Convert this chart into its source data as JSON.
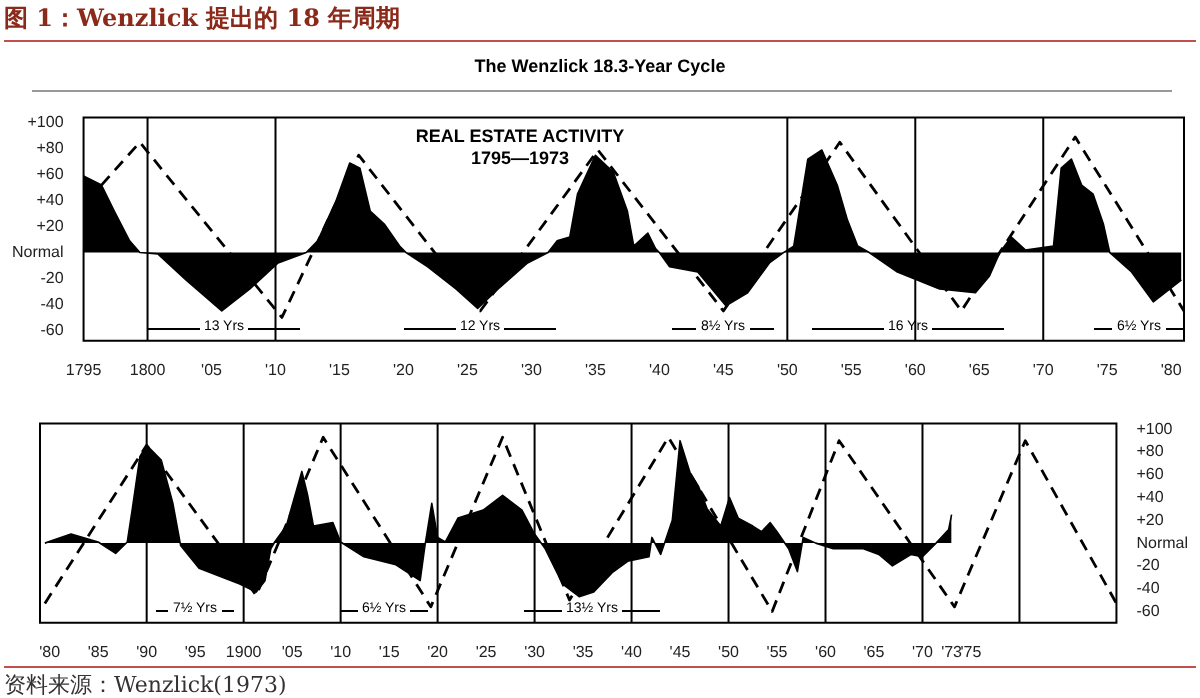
{
  "chart_data": [
    {
      "type": "area",
      "title": "The Wenzlick 18.3-Year Cycle",
      "annotations": [
        "图 1：Wenzlick 提出的 18 年周期",
        "REAL ESTATE ACTIVITY",
        "1795—1973",
        "13 Yrs",
        "12 Yrs",
        "8½ Yrs",
        "16 Yrs",
        "6½ Yrs"
      ],
      "xlim": [
        1795,
        1881
      ],
      "xticks": [
        {
          "value": 1795,
          "label": "1795"
        },
        {
          "value": 1800,
          "label": "1800"
        },
        {
          "value": 1805,
          "label": "'05"
        },
        {
          "value": 1810,
          "label": "'10"
        },
        {
          "value": 1815,
          "label": "'15"
        },
        {
          "value": 1820,
          "label": "'20"
        },
        {
          "value": 1825,
          "label": "'25"
        },
        {
          "value": 1830,
          "label": "'30"
        },
        {
          "value": 1835,
          "label": "'35"
        },
        {
          "value": 1840,
          "label": "'40"
        },
        {
          "value": 1845,
          "label": "'45"
        },
        {
          "value": 1850,
          "label": "'50"
        },
        {
          "value": 1855,
          "label": "'55"
        },
        {
          "value": 1860,
          "label": "'60"
        },
        {
          "value": 1865,
          "label": "'65"
        },
        {
          "value": 1870,
          "label": "'70"
        },
        {
          "value": 1875,
          "label": "'75"
        },
        {
          "value": 1880,
          "label": "'80"
        }
      ],
      "ylim": [
        -68,
        104
      ],
      "yticks": [
        {
          "value": 100,
          "label": "+100"
        },
        {
          "value": 80,
          "label": "+80"
        },
        {
          "value": 60,
          "label": "+60"
        },
        {
          "value": 40,
          "label": "+40"
        },
        {
          "value": 20,
          "label": "+20"
        },
        {
          "value": 0,
          "label": "Normal"
        },
        {
          "value": -20,
          "label": "-20"
        },
        {
          "value": -40,
          "label": "-40"
        },
        {
          "value": -60,
          "label": "-60"
        }
      ],
      "grid": false,
      "marker": "none",
      "ref_lines": [
        {
          "axis": "x",
          "value": 1800
        },
        {
          "axis": "x",
          "value": 1810
        },
        {
          "axis": "x",
          "value": 1850
        },
        {
          "axis": "x",
          "value": 1860
        },
        {
          "axis": "x",
          "value": 1870
        }
      ],
      "series": [
        {
          "color": "#000000",
          "x": [
            1795,
            1796.4,
            1797.4,
            1798.6,
            1799.4,
            1800.8,
            1803,
            1805.8,
            1808,
            1810.2,
            1812.4,
            1813.3,
            1814.7,
            1815.8,
            1816.6,
            1817.4,
            1818.5,
            1819.7,
            1820.2,
            1821.9,
            1824.1,
            1825.8,
            1827.4,
            1829.7,
            1831.3,
            1832,
            1833,
            1833.6,
            1835,
            1836.4,
            1837.5,
            1838,
            1839.1,
            1839.7,
            1840,
            1840.8,
            1843,
            1845.2,
            1846.9,
            1848.6,
            1849.7,
            1850.5,
            1851.6,
            1852.7,
            1853.9,
            1854.7,
            1855.5,
            1856.4,
            1858.6,
            1861.9,
            1864.7,
            1865.8,
            1866.6,
            1867.5,
            1868.6,
            1870.8,
            1871.4,
            1872.2,
            1873,
            1873.9,
            1874.7,
            1875.2,
            1876.9,
            1878.6,
            1880.8
          ],
          "values": [
            59,
            52,
            32,
            9,
            0,
            -1,
            -21,
            -45,
            -28,
            -8,
            0,
            9,
            39,
            69,
            65,
            32,
            22,
            5,
            0,
            -11,
            -28,
            -43,
            -28,
            -8,
            0,
            9,
            12,
            45,
            75,
            62,
            32,
            5,
            15,
            3,
            0,
            -11,
            -15,
            -41,
            -31,
            -8,
            0,
            5,
            72,
            79,
            52,
            25,
            5,
            0,
            -15,
            -28,
            -31,
            -18,
            0,
            12,
            2,
            5,
            65,
            72,
            52,
            45,
            22,
            0,
            -15,
            -38,
            -21
          ]
        },
        {
          "type": "line",
          "line_style": "dashed",
          "color": "#000000",
          "x": [
            1796.4,
            1799.4,
            1810.5,
            1816.5,
            1826,
            1835.2,
            1845,
            1854.1,
            1863.6,
            1872.5,
            1881
          ],
          "values": [
            52,
            85,
            -50,
            75,
            -45,
            79,
            -45,
            85,
            -45,
            89,
            -45
          ]
        }
      ]
    },
    {
      "type": "area",
      "annotations": [
        "资料来源：Wenzlick(1973)",
        "7½ Yrs",
        "6½ Yrs",
        "13½ Yrs"
      ],
      "xlim": [
        1879,
        1990
      ],
      "xticks": [
        {
          "value": 1880,
          "label": "'80"
        },
        {
          "value": 1885,
          "label": "'85"
        },
        {
          "value": 1890,
          "label": "'90"
        },
        {
          "value": 1895,
          "label": "'95"
        },
        {
          "value": 1900,
          "label": "1900"
        },
        {
          "value": 1905,
          "label": "'05"
        },
        {
          "value": 1910,
          "label": "'10"
        },
        {
          "value": 1915,
          "label": "'15"
        },
        {
          "value": 1920,
          "label": "'20"
        },
        {
          "value": 1925,
          "label": "'25"
        },
        {
          "value": 1930,
          "label": "'30"
        },
        {
          "value": 1935,
          "label": "'35"
        },
        {
          "value": 1940,
          "label": "'40"
        },
        {
          "value": 1945,
          "label": "'45"
        },
        {
          "value": 1950,
          "label": "'50"
        },
        {
          "value": 1955,
          "label": "'55"
        },
        {
          "value": 1960,
          "label": "'60"
        },
        {
          "value": 1965,
          "label": "'65"
        },
        {
          "value": 1970,
          "label": "'70"
        },
        {
          "value": 1973,
          "label": "'73"
        },
        {
          "value": 1975,
          "label": "'75"
        }
      ],
      "y2lim": [
        -70,
        105
      ],
      "y2ticks": [
        {
          "value": 100,
          "label": "+100"
        },
        {
          "value": 80,
          "label": "+80"
        },
        {
          "value": 60,
          "label": "+60"
        },
        {
          "value": 40,
          "label": "+40"
        },
        {
          "value": 20,
          "label": "+20"
        },
        {
          "value": 0,
          "label": "Normal"
        },
        {
          "value": -20,
          "label": "-20"
        },
        {
          "value": -40,
          "label": "-40"
        },
        {
          "value": -60,
          "label": "-60"
        }
      ],
      "grid": false,
      "marker": "none",
      "ref_lines": [
        {
          "axis": "x",
          "value": 1890
        },
        {
          "axis": "x",
          "value": 1900
        },
        {
          "axis": "x",
          "value": 1910
        },
        {
          "axis": "x",
          "value": 1920
        },
        {
          "axis": "x",
          "value": 1930
        },
        {
          "axis": "x",
          "value": 1940
        },
        {
          "axis": "x",
          "value": 1950
        },
        {
          "axis": "x",
          "value": 1960
        },
        {
          "axis": "x",
          "value": 1970
        },
        {
          "axis": "x",
          "value": 1980
        }
      ],
      "series": [
        {
          "axis": "y2",
          "color": "#000000",
          "x": [
            1879.5,
            1882.2,
            1885,
            1886.8,
            1888,
            1888.5,
            1889.3,
            1890,
            1891.5,
            1892.7,
            1893.5,
            1895.4,
            1899.6,
            1901.3,
            1902.2,
            1902.8,
            1903.2,
            1904.4,
            1906,
            1906.6,
            1907.2,
            1909.2,
            1910,
            1912.4,
            1915.7,
            1918.2,
            1918.7,
            1919.4,
            1920,
            1920.8,
            1922.1,
            1924.7,
            1926.7,
            1928.7,
            1930,
            1931.1,
            1932.9,
            1934.6,
            1936.1,
            1938,
            1939.6,
            1941.8,
            1942.1,
            1943,
            1943.6,
            1944.2,
            1944.6,
            1945,
            1946.1,
            1946.9,
            1947.8,
            1949.2,
            1950.1,
            1951,
            1952.5,
            1953.4,
            1954.3,
            1955,
            1956.2,
            1957.1,
            1957.7,
            1959,
            1960.8,
            1963.9,
            1965.5,
            1966.9,
            1968.8,
            1970,
            1971.4,
            1972.7,
            1973
          ],
          "values": [
            0,
            8,
            1,
            -9,
            1,
            29,
            76,
            86,
            73,
            35,
            -2,
            -22,
            -36,
            -43,
            -33,
            -5,
            1,
            15,
            63,
            42,
            15,
            18,
            1,
            -12,
            -19,
            -33,
            -2,
            35,
            5,
            1,
            22,
            29,
            42,
            29,
            8,
            -5,
            -36,
            -47,
            -43,
            -26,
            -16,
            -12,
            5,
            -10,
            5,
            20,
            55,
            90,
            60,
            50,
            30,
            15,
            40,
            22,
            15,
            10,
            18,
            10,
            -5,
            -25,
            5,
            0,
            -5,
            -5,
            -10,
            -20,
            -10,
            -12,
            0,
            12,
            25
          ]
        },
        {
          "type": "line",
          "axis": "y2",
          "line_style": "dashed",
          "color": "#000000",
          "x": [
            1879.5,
            1890,
            1901.3,
            1908.2,
            1919.3,
            1926.7,
            1933.6,
            1943.8,
            1954.5,
            1961.4,
            1973.3,
            1980.6,
            1990
          ],
          "values": [
            -53,
            86,
            -46,
            93,
            -56,
            93,
            -50,
            93,
            -60,
            90,
            -56,
            90,
            -53
          ]
        }
      ]
    }
  ]
}
